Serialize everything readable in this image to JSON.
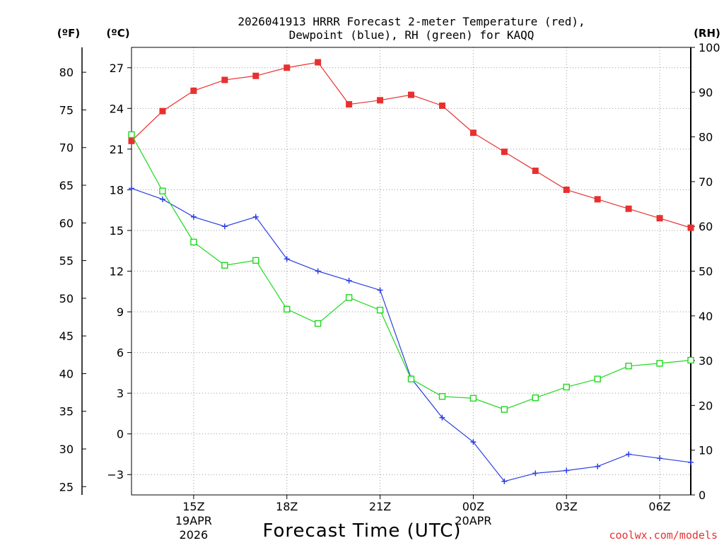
{
  "chart_data": {
    "type": "line",
    "title_line1": "2026041913 HRRR Forecast 2-meter Temperature (red),",
    "title_line2": "Dewpoint (blue), RH (green) for KAQQ",
    "xlabel": "Forecast Time (UTC)",
    "credit": "coolwx.com/models",
    "units": {
      "fahrenheit": "(ºF)",
      "celsius": "(ºC)",
      "rh": "(RH)"
    },
    "colors": {
      "temperature": "#e83030",
      "dewpoint": "#2a3fe0",
      "rh": "#1ed81e",
      "axis": "#000000",
      "grid": "#999999"
    },
    "x_hours_after_13z": [
      0,
      1,
      2,
      3,
      4,
      5,
      6,
      7,
      8,
      9,
      10,
      11,
      12,
      13,
      14,
      15,
      16,
      17,
      18
    ],
    "x_range": [
      0,
      18
    ],
    "x_ticks": [
      {
        "h": 2,
        "label": "15Z",
        "sub1": "19APR",
        "sub2": "2026"
      },
      {
        "h": 5,
        "label": "18Z",
        "sub1": "",
        "sub2": ""
      },
      {
        "h": 8,
        "label": "21Z",
        "sub1": "",
        "sub2": ""
      },
      {
        "h": 11,
        "label": "00Z",
        "sub1": "20APR",
        "sub2": ""
      },
      {
        "h": 14,
        "label": "03Z",
        "sub1": "",
        "sub2": ""
      },
      {
        "h": 17,
        "label": "06Z",
        "sub1": "",
        "sub2": ""
      }
    ],
    "celsius_range": [
      -4.5,
      28.5
    ],
    "celsius_ticks": [
      -3,
      0,
      3,
      6,
      9,
      12,
      15,
      18,
      21,
      24,
      27
    ],
    "fahrenheit_ticks": [
      25,
      30,
      35,
      40,
      45,
      50,
      55,
      60,
      65,
      70,
      75,
      80
    ],
    "rh_range": [
      0,
      100
    ],
    "rh_ticks": [
      0,
      10,
      20,
      30,
      40,
      50,
      60,
      70,
      80,
      90,
      100
    ],
    "series": [
      {
        "name": "Temperature",
        "unit": "C",
        "marker": "filled-square",
        "values": [
          21.6,
          23.8,
          25.3,
          26.1,
          26.4,
          27.0,
          27.4,
          24.3,
          24.6,
          25.0,
          24.2,
          22.2,
          20.8,
          19.4,
          18.0,
          17.3,
          16.6,
          15.9,
          15.2
        ]
      },
      {
        "name": "Dewpoint",
        "unit": "C",
        "marker": "plus",
        "values": [
          18.1,
          17.3,
          16.0,
          15.3,
          16.0,
          12.9,
          12.0,
          11.3,
          10.6,
          4.1,
          1.2,
          -0.6,
          -3.5,
          -2.9,
          -2.7,
          -2.4,
          -1.5,
          -1.8,
          -2.1
        ]
      },
      {
        "name": "RH",
        "unit": "%",
        "marker": "open-square",
        "values": [
          80.5,
          67.9,
          56.5,
          51.3,
          52.4,
          41.5,
          38.3,
          44.1,
          41.3,
          25.9,
          22.0,
          21.6,
          19.1,
          21.7,
          24.1,
          25.9,
          28.8,
          29.4,
          30.1
        ]
      }
    ]
  }
}
